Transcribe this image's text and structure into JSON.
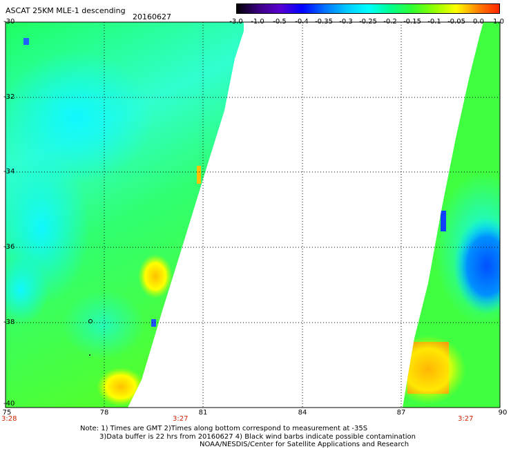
{
  "title": "ASCAT 25KM MLE-1 descending",
  "date": "20160627",
  "colorbar": {
    "labels": [
      "-3.0",
      "-1.0",
      "-0.5",
      "-0.4",
      "-0.35",
      "-0.3",
      "-0.25",
      "-0.2",
      "-0.15",
      "-0.1",
      "-0.05",
      "0.0",
      "1.0"
    ],
    "colors": [
      "#000000",
      "#3a0080",
      "#5a00d0",
      "#0000ff",
      "#0070ff",
      "#00c8ff",
      "#00ffff",
      "#00ff90",
      "#30ff30",
      "#90ff00",
      "#ffff00",
      "#ff8000",
      "#ff2000"
    ]
  },
  "y_axis": {
    "labels": [
      "-30",
      "-32",
      "-34",
      "-36",
      "-38",
      "-40"
    ]
  },
  "x_axis": {
    "labels": [
      "75",
      "78",
      "81",
      "84",
      "87",
      "90"
    ]
  },
  "time_labels": [
    "3:28",
    "3:27",
    "3:27"
  ],
  "notes": [
    "Note: 1) Times are GMT 2)Times along bottom correspond to measurement at -35S",
    "3)Data buffer is 22 hrs from 20160627 4) Black wind barbs indicate possible contamination",
    "NOAA/NESDIS/Center for Satellite Applications and Research"
  ]
}
